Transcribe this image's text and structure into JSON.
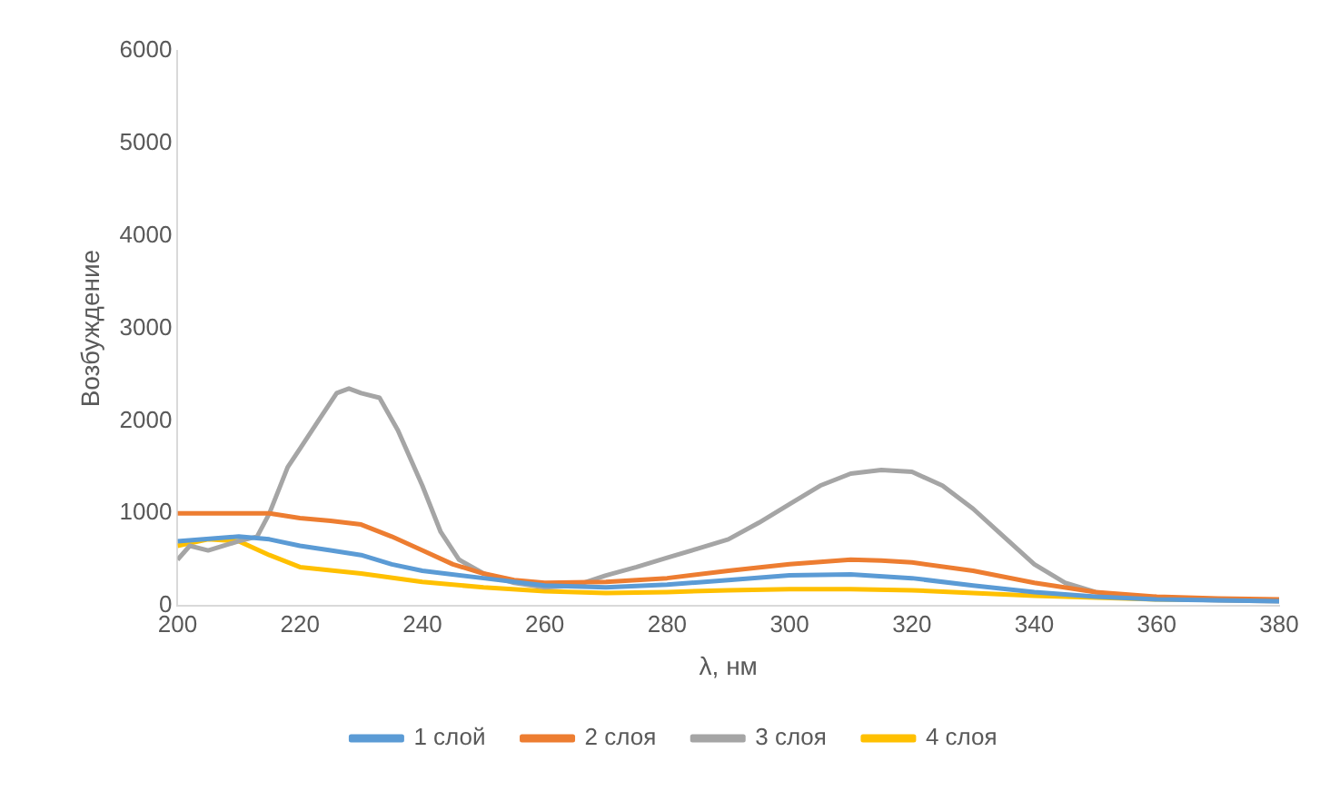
{
  "chart_data": {
    "type": "line",
    "xlabel": "λ, нм",
    "ylabel": "Возбуждение",
    "xlim": [
      200,
      380
    ],
    "xticks": [
      200,
      220,
      240,
      260,
      280,
      300,
      320,
      340,
      360,
      380
    ],
    "ylim": [
      0,
      6000
    ],
    "yticks": [
      0,
      1000,
      2000,
      3000,
      4000,
      5000,
      6000
    ],
    "grid": false,
    "legend": "bottom",
    "marker": "none",
    "line_style": "solid",
    "series": [
      {
        "name": "1 слой",
        "color": "#5b9bd5",
        "x": [
          200,
          210,
          215,
          220,
          225,
          230,
          235,
          240,
          250,
          260,
          270,
          280,
          290,
          300,
          310,
          320,
          330,
          340,
          350,
          360,
          380
        ],
        "values": [
          700,
          750,
          720,
          650,
          600,
          550,
          450,
          380,
          300,
          220,
          200,
          230,
          280,
          330,
          340,
          300,
          220,
          150,
          100,
          70,
          50
        ]
      },
      {
        "name": "2 слоя",
        "color": "#ed7d31",
        "x": [
          200,
          210,
          215,
          220,
          225,
          230,
          235,
          240,
          245,
          250,
          255,
          260,
          270,
          280,
          290,
          300,
          310,
          315,
          320,
          330,
          340,
          350,
          360,
          370,
          380
        ],
        "values": [
          1000,
          1000,
          1000,
          950,
          920,
          880,
          750,
          600,
          450,
          350,
          280,
          250,
          260,
          300,
          380,
          450,
          500,
          490,
          470,
          380,
          250,
          150,
          100,
          80,
          70
        ]
      },
      {
        "name": "3 слоя",
        "color": "#a5a5a5",
        "x": [
          200,
          202,
          205,
          210,
          213,
          215,
          218,
          220,
          223,
          226,
          228,
          230,
          233,
          236,
          240,
          243,
          246,
          250,
          255,
          260,
          265,
          270,
          275,
          280,
          285,
          290,
          295,
          300,
          305,
          310,
          315,
          320,
          325,
          330,
          335,
          340,
          345,
          350,
          355,
          360,
          370,
          380
        ],
        "values": [
          500,
          650,
          600,
          700,
          750,
          1000,
          1500,
          1700,
          2000,
          2300,
          2350,
          2300,
          2250,
          1900,
          1300,
          800,
          500,
          350,
          250,
          200,
          220,
          330,
          420,
          520,
          620,
          720,
          900,
          1100,
          1300,
          1430,
          1470,
          1450,
          1300,
          1050,
          750,
          450,
          250,
          150,
          100,
          80,
          60,
          50
        ]
      },
      {
        "name": "4 слоя",
        "color": "#ffc000",
        "x": [
          200,
          205,
          210,
          215,
          220,
          230,
          240,
          250,
          260,
          270,
          280,
          290,
          300,
          310,
          320,
          330,
          340,
          350,
          360,
          380
        ],
        "values": [
          650,
          720,
          700,
          550,
          420,
          350,
          260,
          200,
          160,
          140,
          150,
          170,
          180,
          180,
          170,
          140,
          110,
          90,
          70,
          60
        ]
      }
    ]
  }
}
